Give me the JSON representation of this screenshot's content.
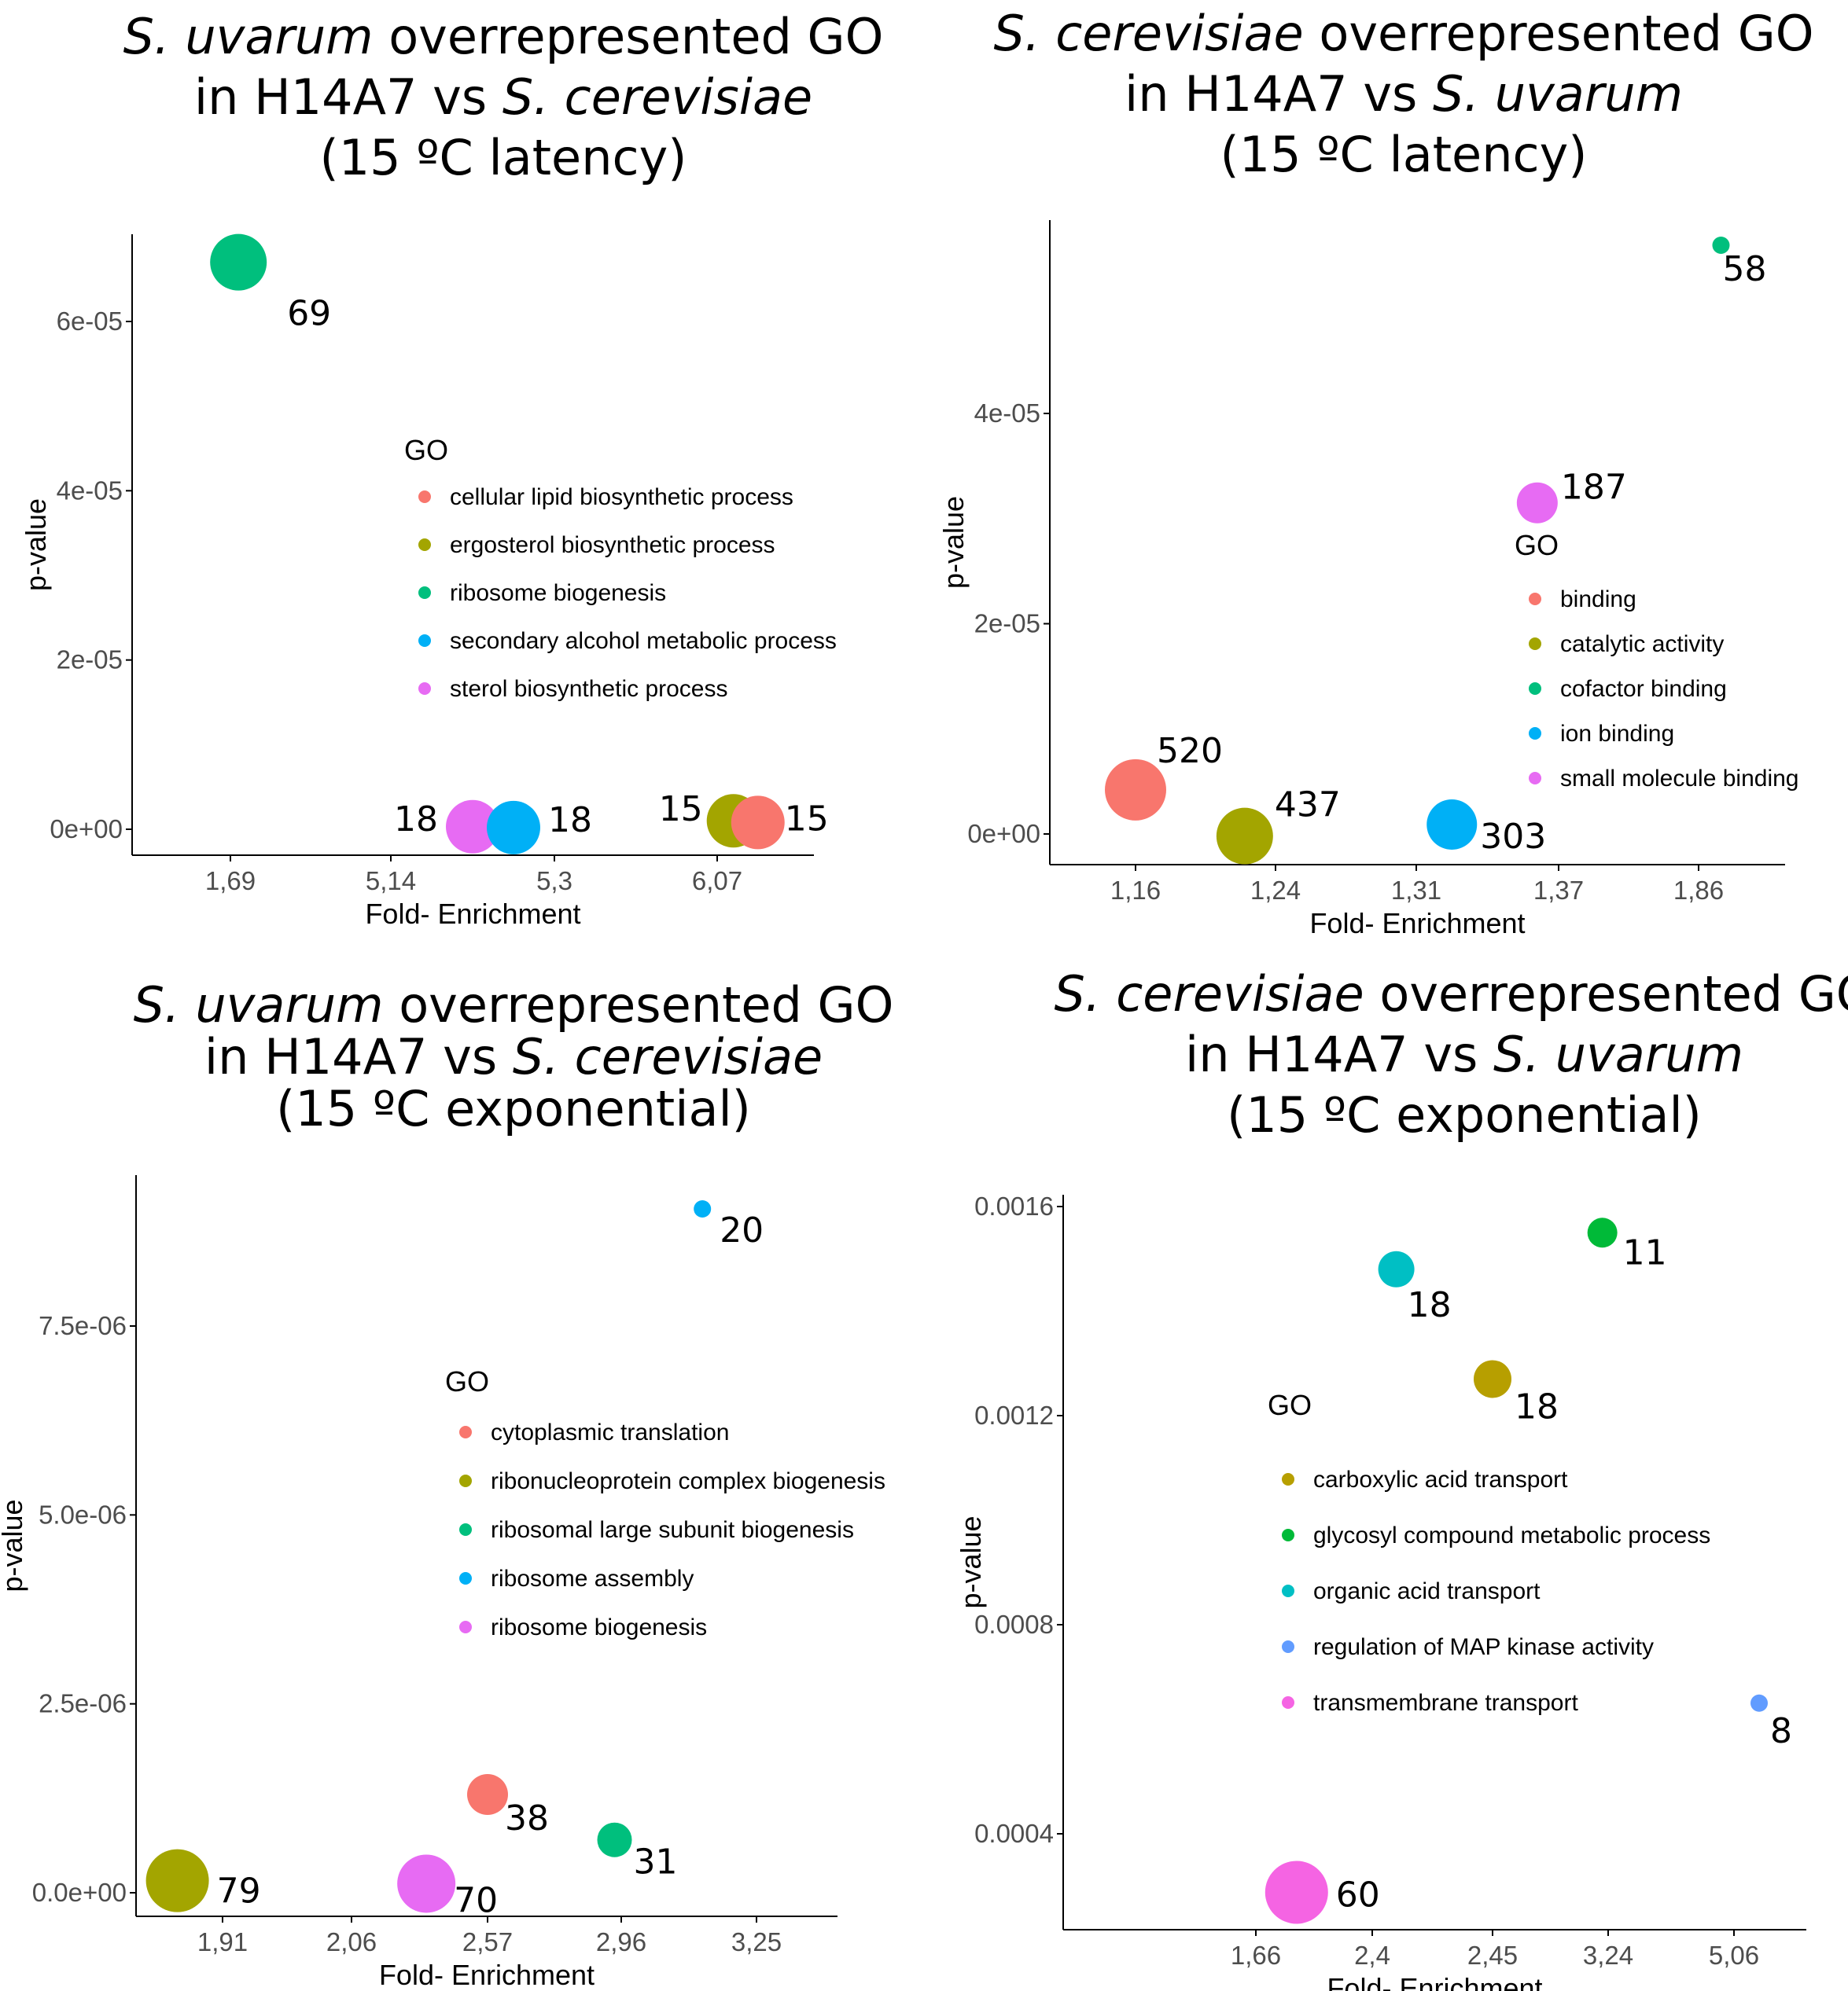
{
  "chart_data": [
    {
      "type": "scatter",
      "title_parts": [
        {
          "line": 0,
          "text": "S. uvarum",
          "italic": true
        },
        {
          "line": 0,
          "text": " overrepresented GO",
          "italic": false
        },
        {
          "line": 1,
          "text": "in H14A7 vs ",
          "italic": false
        },
        {
          "line": 1,
          "text": "S. cerevisiae",
          "italic": true
        },
        {
          "line": 2,
          "text": "(15 ºC latency)",
          "italic": false
        }
      ],
      "xlabel": "Fold- Enrichment",
      "ylabel": "p-value",
      "x_categories": [
        "1,69",
        "5,14",
        "5,3",
        "6,07"
      ],
      "y_ticks": [
        {
          "v": 0,
          "label": "0e+00"
        },
        {
          "v": 2e-05,
          "label": "2e-05"
        },
        {
          "v": 4e-05,
          "label": "4e-05"
        },
        {
          "v": 6e-05,
          "label": "6e-05"
        }
      ],
      "ylim": [
        -3e-06,
        7e-05
      ],
      "legend_title": "GO",
      "legend": [
        {
          "label": "cellular lipid biosynthetic process",
          "color": "#F8766D"
        },
        {
          "label": "ergosterol biosynthetic process",
          "color": "#A3A500"
        },
        {
          "label": "ribosome biogenesis",
          "color": "#00BF7D"
        },
        {
          "label": "secondary alcohol metabolic process",
          "color": "#00B0F6"
        },
        {
          "label": "sterol biosynthetic process",
          "color": "#E76BF3"
        }
      ],
      "points": [
        {
          "go": "ribosome biogenesis",
          "x_pos": 0.05,
          "y": 6.7e-05,
          "count": "69",
          "color": "#00BF7D"
        },
        {
          "go": "sterol biosynthetic process",
          "x_pos": 1.5,
          "y": 3e-07,
          "count": "18",
          "color": "#E76BF3"
        },
        {
          "go": "secondary alcohol metabolic process",
          "x_pos": 1.75,
          "y": 2e-07,
          "count": "18",
          "color": "#00B0F6"
        },
        {
          "go": "ergosterol biosynthetic process",
          "x_pos": 3.1,
          "y": 1e-06,
          "count": "15",
          "color": "#A3A500"
        },
        {
          "go": "cellular lipid biosynthetic process",
          "x_pos": 3.25,
          "y": 8e-07,
          "count": "15",
          "color": "#F8766D"
        }
      ]
    },
    {
      "type": "scatter",
      "title_parts": [
        {
          "line": 0,
          "text": "S. cerevisiae",
          "italic": true
        },
        {
          "line": 0,
          "text": " overrepresented GO",
          "italic": false
        },
        {
          "line": 1,
          "text": "in H14A7 vs ",
          "italic": false
        },
        {
          "line": 1,
          "text": "S. uvarum",
          "italic": true
        },
        {
          "line": 2,
          "text": "(15 ºC latency)",
          "italic": false
        }
      ],
      "xlabel": "Fold- Enrichment",
      "ylabel": "p-value",
      "x_categories": [
        "1,16",
        "1,24",
        "1,31",
        "1,37",
        "1,86"
      ],
      "y_ticks": [
        {
          "v": 0,
          "label": "0e+00"
        },
        {
          "v": 2e-05,
          "label": "2e-05"
        },
        {
          "v": 4e-05,
          "label": "4e-05"
        }
      ],
      "ylim": [
        -3e-06,
        5.8e-05
      ],
      "legend_title": "GO",
      "legend": [
        {
          "label": "binding",
          "color": "#F8766D"
        },
        {
          "label": "catalytic activity",
          "color": "#A3A500"
        },
        {
          "label": "cofactor binding",
          "color": "#00BF7D"
        },
        {
          "label": "ion binding",
          "color": "#00B0F6"
        },
        {
          "label": "small molecule binding",
          "color": "#E76BF3"
        }
      ],
      "points": [
        {
          "go": "binding",
          "x_pos": 0.0,
          "y": 4.2e-06,
          "count": "520",
          "color": "#F8766D"
        },
        {
          "go": "catalytic activity",
          "x_pos": 0.78,
          "y": -2e-07,
          "count": "437",
          "color": "#A3A500"
        },
        {
          "go": "ion binding",
          "x_pos": 2.25,
          "y": 9e-07,
          "count": "303",
          "color": "#00B0F6"
        },
        {
          "go": "small molecule binding",
          "x_pos": 2.85,
          "y": 3.15e-05,
          "count": "187",
          "color": "#E76BF3"
        },
        {
          "go": "cofactor binding",
          "x_pos": 4.16,
          "y": 5.6e-05,
          "count": "58",
          "color": "#00BF7D"
        }
      ]
    },
    {
      "type": "scatter",
      "title_parts": [
        {
          "line": 0,
          "text": "S. uvarum",
          "italic": true
        },
        {
          "line": 0,
          "text": " overrepresented GO",
          "italic": false
        },
        {
          "line": 1,
          "text": "in H14A7 vs ",
          "italic": false
        },
        {
          "line": 1,
          "text": "S. cerevisiae",
          "italic": true
        },
        {
          "line": 2,
          "text": "(15 ºC exponential)",
          "italic": false
        }
      ],
      "xlabel": "Fold- Enrichment",
      "ylabel": "p-value",
      "x_categories": [
        "1,91",
        "2,06",
        "2,57",
        "2,96",
        "3,25"
      ],
      "y_ticks": [
        {
          "v": 0,
          "label": "0.0e+00"
        },
        {
          "v": 2.5e-06,
          "label": "2.5e-06"
        },
        {
          "v": 5e-06,
          "label": "5.0e-06"
        },
        {
          "v": 7.5e-06,
          "label": "7.5e-06"
        }
      ],
      "ylim": [
        -3e-07,
        9.4e-06
      ],
      "legend_title": "GO",
      "legend": [
        {
          "label": "cytoplasmic translation",
          "color": "#F8766D"
        },
        {
          "label": "ribonucleoprotein complex biogenesis",
          "color": "#A3A500"
        },
        {
          "label": "ribosomal large subunit biogenesis",
          "color": "#00BF7D"
        },
        {
          "label": "ribosome assembly",
          "color": "#00B0F6"
        },
        {
          "label": "ribosome biogenesis",
          "color": "#E76BF3"
        }
      ],
      "points": [
        {
          "go": "ribonucleoprotein complex biogenesis",
          "x_pos": -0.35,
          "y": 1.6e-07,
          "count": "79",
          "color": "#A3A500"
        },
        {
          "go": "ribosome biogenesis",
          "x_pos": 1.55,
          "y": 1.2e-07,
          "count": "70",
          "color": "#E76BF3"
        },
        {
          "go": "cytoplasmic translation",
          "x_pos": 2.0,
          "y": 1.3e-06,
          "count": "38",
          "color": "#F8766D"
        },
        {
          "go": "ribosomal large subunit biogenesis",
          "x_pos": 2.95,
          "y": 7e-07,
          "count": "31",
          "color": "#00BF7D"
        },
        {
          "go": "ribosome assembly",
          "x_pos": 3.6,
          "y": 9.05e-06,
          "count": "20",
          "color": "#00B0F6"
        }
      ]
    },
    {
      "type": "scatter",
      "title_parts": [
        {
          "line": 0,
          "text": "S. cerevisiae",
          "italic": true
        },
        {
          "line": 0,
          "text": " overrepresented GO",
          "italic": false
        },
        {
          "line": 1,
          "text": "in H14A7 vs ",
          "italic": false
        },
        {
          "line": 1,
          "text": "S. uvarum",
          "italic": true
        },
        {
          "line": 2,
          "text": "(15 ºC exponential)",
          "italic": false
        }
      ],
      "xlabel": "Fold- Enrichment",
      "ylabel": "p-value",
      "x_categories": [
        "1,66",
        "2,4",
        "2,45",
        "3,24",
        "5,06"
      ],
      "y_ticks": [
        {
          "v": 0.0004,
          "label": "0.0004"
        },
        {
          "v": 0.0008,
          "label": "0.0008"
        },
        {
          "v": 0.0012,
          "label": "0.0012"
        },
        {
          "v": 0.0016,
          "label": "0.0016"
        }
      ],
      "ylim": [
        0.00025,
        0.00162
      ],
      "legend_title": "GO",
      "legend": [
        {
          "label": "carboxylic acid transport",
          "color": "#B79F00"
        },
        {
          "label": "glycosyl compound metabolic process",
          "color": "#00BA38"
        },
        {
          "label": "organic acid transport",
          "color": "#00BFC4"
        },
        {
          "label": "regulation of MAP kinase activity",
          "color": "#619CFF"
        },
        {
          "label": "transmembrane transport",
          "color": "#F564E3"
        }
      ],
      "points": [
        {
          "go": "transmembrane transport",
          "x_pos": 0.35,
          "y": 0.000288,
          "count": "60",
          "color": "#F564E3"
        },
        {
          "go": "organic acid transport",
          "x_pos": 1.2,
          "y": 0.00148,
          "count": "18",
          "color": "#00BFC4"
        },
        {
          "go": "carboxylic acid transport",
          "x_pos": 2.0,
          "y": 0.00127,
          "count": "18",
          "color": "#B79F00"
        },
        {
          "go": "glycosyl compound metabolic process",
          "x_pos": 2.95,
          "y": 0.00155,
          "count": "11",
          "color": "#00BA38"
        },
        {
          "go": "regulation of MAP kinase activity",
          "x_pos": 4.2,
          "y": 0.00065,
          "count": "8",
          "color": "#619CFF"
        }
      ]
    }
  ]
}
